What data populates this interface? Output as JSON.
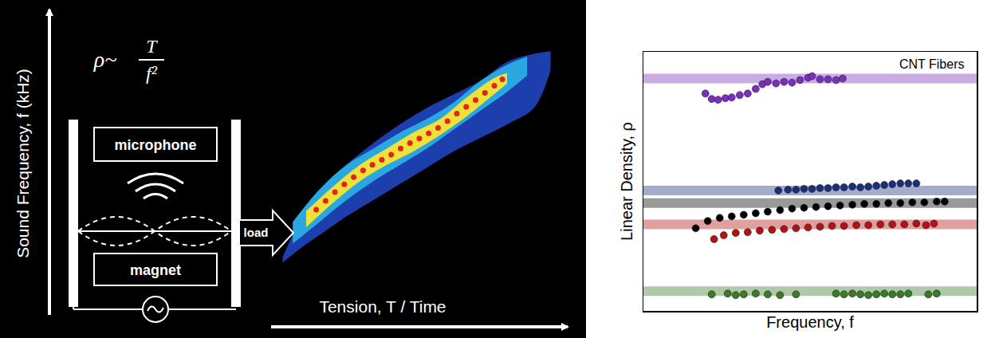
{
  "diagram": {
    "formula": {
      "lhs": "ρ~",
      "numerator": "T",
      "denominator": "f²"
    },
    "labels": {
      "microphone": "microphone",
      "magnet": "magnet",
      "load": "load"
    }
  },
  "chart_data": [
    {
      "type": "spectrogram",
      "x_label": "Tension, T / Time",
      "y_label": "Sound Frequency, f (kHz)",
      "xlim": [
        0,
        100
      ],
      "ylim": [
        0,
        100
      ],
      "tick_labels": false,
      "grid": false,
      "bands": [
        {
          "color": "#1d3fae",
          "x": [
            13,
            18,
            25,
            32,
            40,
            48,
            56,
            64,
            72,
            80,
            88,
            93
          ],
          "upper": [
            11,
            24,
            36,
            45,
            53,
            60,
            66,
            71,
            76,
            83,
            86,
            87
          ],
          "lower": [
            9,
            14,
            20,
            26,
            32,
            38,
            44,
            50,
            55,
            60,
            66,
            80
          ]
        },
        {
          "color": "#2aa7e0",
          "x": [
            16,
            24,
            32,
            40,
            48,
            56,
            64,
            72,
            80,
            86
          ],
          "upper": [
            24,
            36,
            45,
            51,
            57,
            62,
            68,
            76,
            82,
            85
          ],
          "lower": [
            16,
            24,
            32,
            39,
            45,
            51,
            58,
            65,
            72,
            78
          ]
        },
        {
          "color": "#f0e03a",
          "x": [
            20,
            28,
            36,
            44,
            52,
            60,
            68,
            76,
            80
          ],
          "upper": [
            28,
            37,
            45,
            51,
            57,
            62,
            70,
            77,
            79
          ],
          "lower": [
            22,
            31,
            39,
            45,
            50,
            56,
            63,
            71,
            75
          ]
        }
      ],
      "series": [
        {
          "color": "#e0241a",
          "marker": "circle",
          "x": [
            23.0,
            25.8,
            28.6,
            31.4,
            34.2,
            37.0,
            39.8,
            42.6,
            45.4,
            48.2,
            51.0,
            53.8,
            56.6,
            59.4,
            62.2,
            65.0,
            67.8,
            70.6,
            73.4,
            76.2,
            78.6
          ],
          "values": [
            28.5,
            31.8,
            35.0,
            37.9,
            40.5,
            43.0,
            45.1,
            46.9,
            48.8,
            51.1,
            53.1,
            54.8,
            56.7,
            58.7,
            61.2,
            64.0,
            66.5,
            69.0,
            71.6,
            74.3,
            76.6
          ]
        }
      ]
    },
    {
      "type": "scatter",
      "annotation": "CNT Fibers",
      "x_label": "Frequency, f",
      "y_label": "Linear Density, ρ",
      "xlim": [
        0,
        100
      ],
      "ylim": [
        0,
        100
      ],
      "tick_labels": false,
      "grid": false,
      "series": [
        {
          "color": "#7b2fbe",
          "marker": "circle",
          "reference": 89.7,
          "x": [
            18.6,
            20.5,
            22.4,
            24.6,
            26.5,
            28.9,
            31.3,
            33.7,
            35.7,
            37.3,
            39.8,
            42.2,
            44.6,
            47.0,
            49.4,
            50.6,
            53.0,
            55.4,
            57.8,
            59.8
          ],
          "values": [
            83.9,
            81.8,
            81.5,
            82.1,
            82.4,
            83.3,
            83.9,
            85.7,
            87.5,
            88.4,
            87.8,
            88.4,
            88.1,
            89.1,
            90.0,
            90.6,
            89.4,
            89.4,
            89.1,
            89.7
          ]
        },
        {
          "color": "#1a2f7a",
          "marker": "circle",
          "reference": 46.5,
          "x": [
            40.5,
            43.4,
            45.8,
            48.2,
            50.6,
            53.0,
            55.4,
            57.8,
            60.2,
            62.7,
            65.1,
            67.5,
            69.9,
            72.3,
            74.7,
            77.1,
            79.5,
            81.9
          ],
          "values": [
            46.5,
            46.8,
            46.8,
            47.1,
            47.1,
            47.4,
            47.4,
            47.7,
            47.7,
            48.0,
            47.7,
            48.0,
            48.3,
            48.6,
            48.9,
            49.2,
            49.2,
            49.2
          ]
        },
        {
          "color": "#000000",
          "marker": "circle",
          "reference": 41.6,
          "x": [
            15.7,
            19.3,
            22.9,
            26.5,
            30.1,
            33.7,
            37.3,
            41.0,
            44.6,
            48.2,
            51.8,
            55.4,
            59.0,
            62.7,
            66.3,
            69.9,
            73.5,
            77.1,
            80.7,
            84.3,
            88.0,
            90.4
          ],
          "values": [
            31.9,
            34.7,
            35.9,
            36.5,
            37.1,
            37.7,
            38.3,
            38.9,
            39.5,
            39.8,
            40.1,
            40.4,
            40.7,
            41.0,
            41.3,
            41.3,
            41.6,
            41.6,
            41.9,
            41.9,
            42.2,
            42.2
          ]
        },
        {
          "color": "#b31212",
          "marker": "circle",
          "reference": 33.4,
          "x": [
            21.2,
            24.1,
            27.7,
            31.3,
            34.9,
            38.6,
            42.2,
            45.8,
            49.4,
            53.0,
            56.6,
            60.2,
            63.9,
            67.5,
            71.1,
            74.7,
            78.3,
            81.9,
            84.8,
            87.2
          ],
          "values": [
            27.7,
            29.2,
            30.1,
            30.4,
            31.0,
            31.3,
            31.6,
            31.9,
            32.2,
            32.5,
            32.8,
            32.8,
            33.1,
            33.1,
            33.4,
            33.4,
            33.4,
            33.7,
            33.1,
            33.7
          ]
        },
        {
          "color": "#3a7a28",
          "marker": "circle",
          "reference": 7.6,
          "x": [
            20.5,
            25.3,
            27.7,
            30.1,
            33.7,
            37.3,
            41.0,
            45.8,
            57.8,
            60.2,
            62.7,
            65.1,
            67.5,
            69.9,
            72.3,
            74.7,
            77.1,
            79.5,
            85.5,
            88.0
          ],
          "values": [
            6.4,
            6.7,
            6.1,
            6.4,
            6.7,
            6.4,
            6.1,
            6.4,
            6.7,
            6.4,
            6.7,
            6.4,
            6.1,
            6.4,
            6.7,
            6.4,
            6.4,
            6.7,
            6.4,
            6.7
          ]
        }
      ]
    }
  ]
}
